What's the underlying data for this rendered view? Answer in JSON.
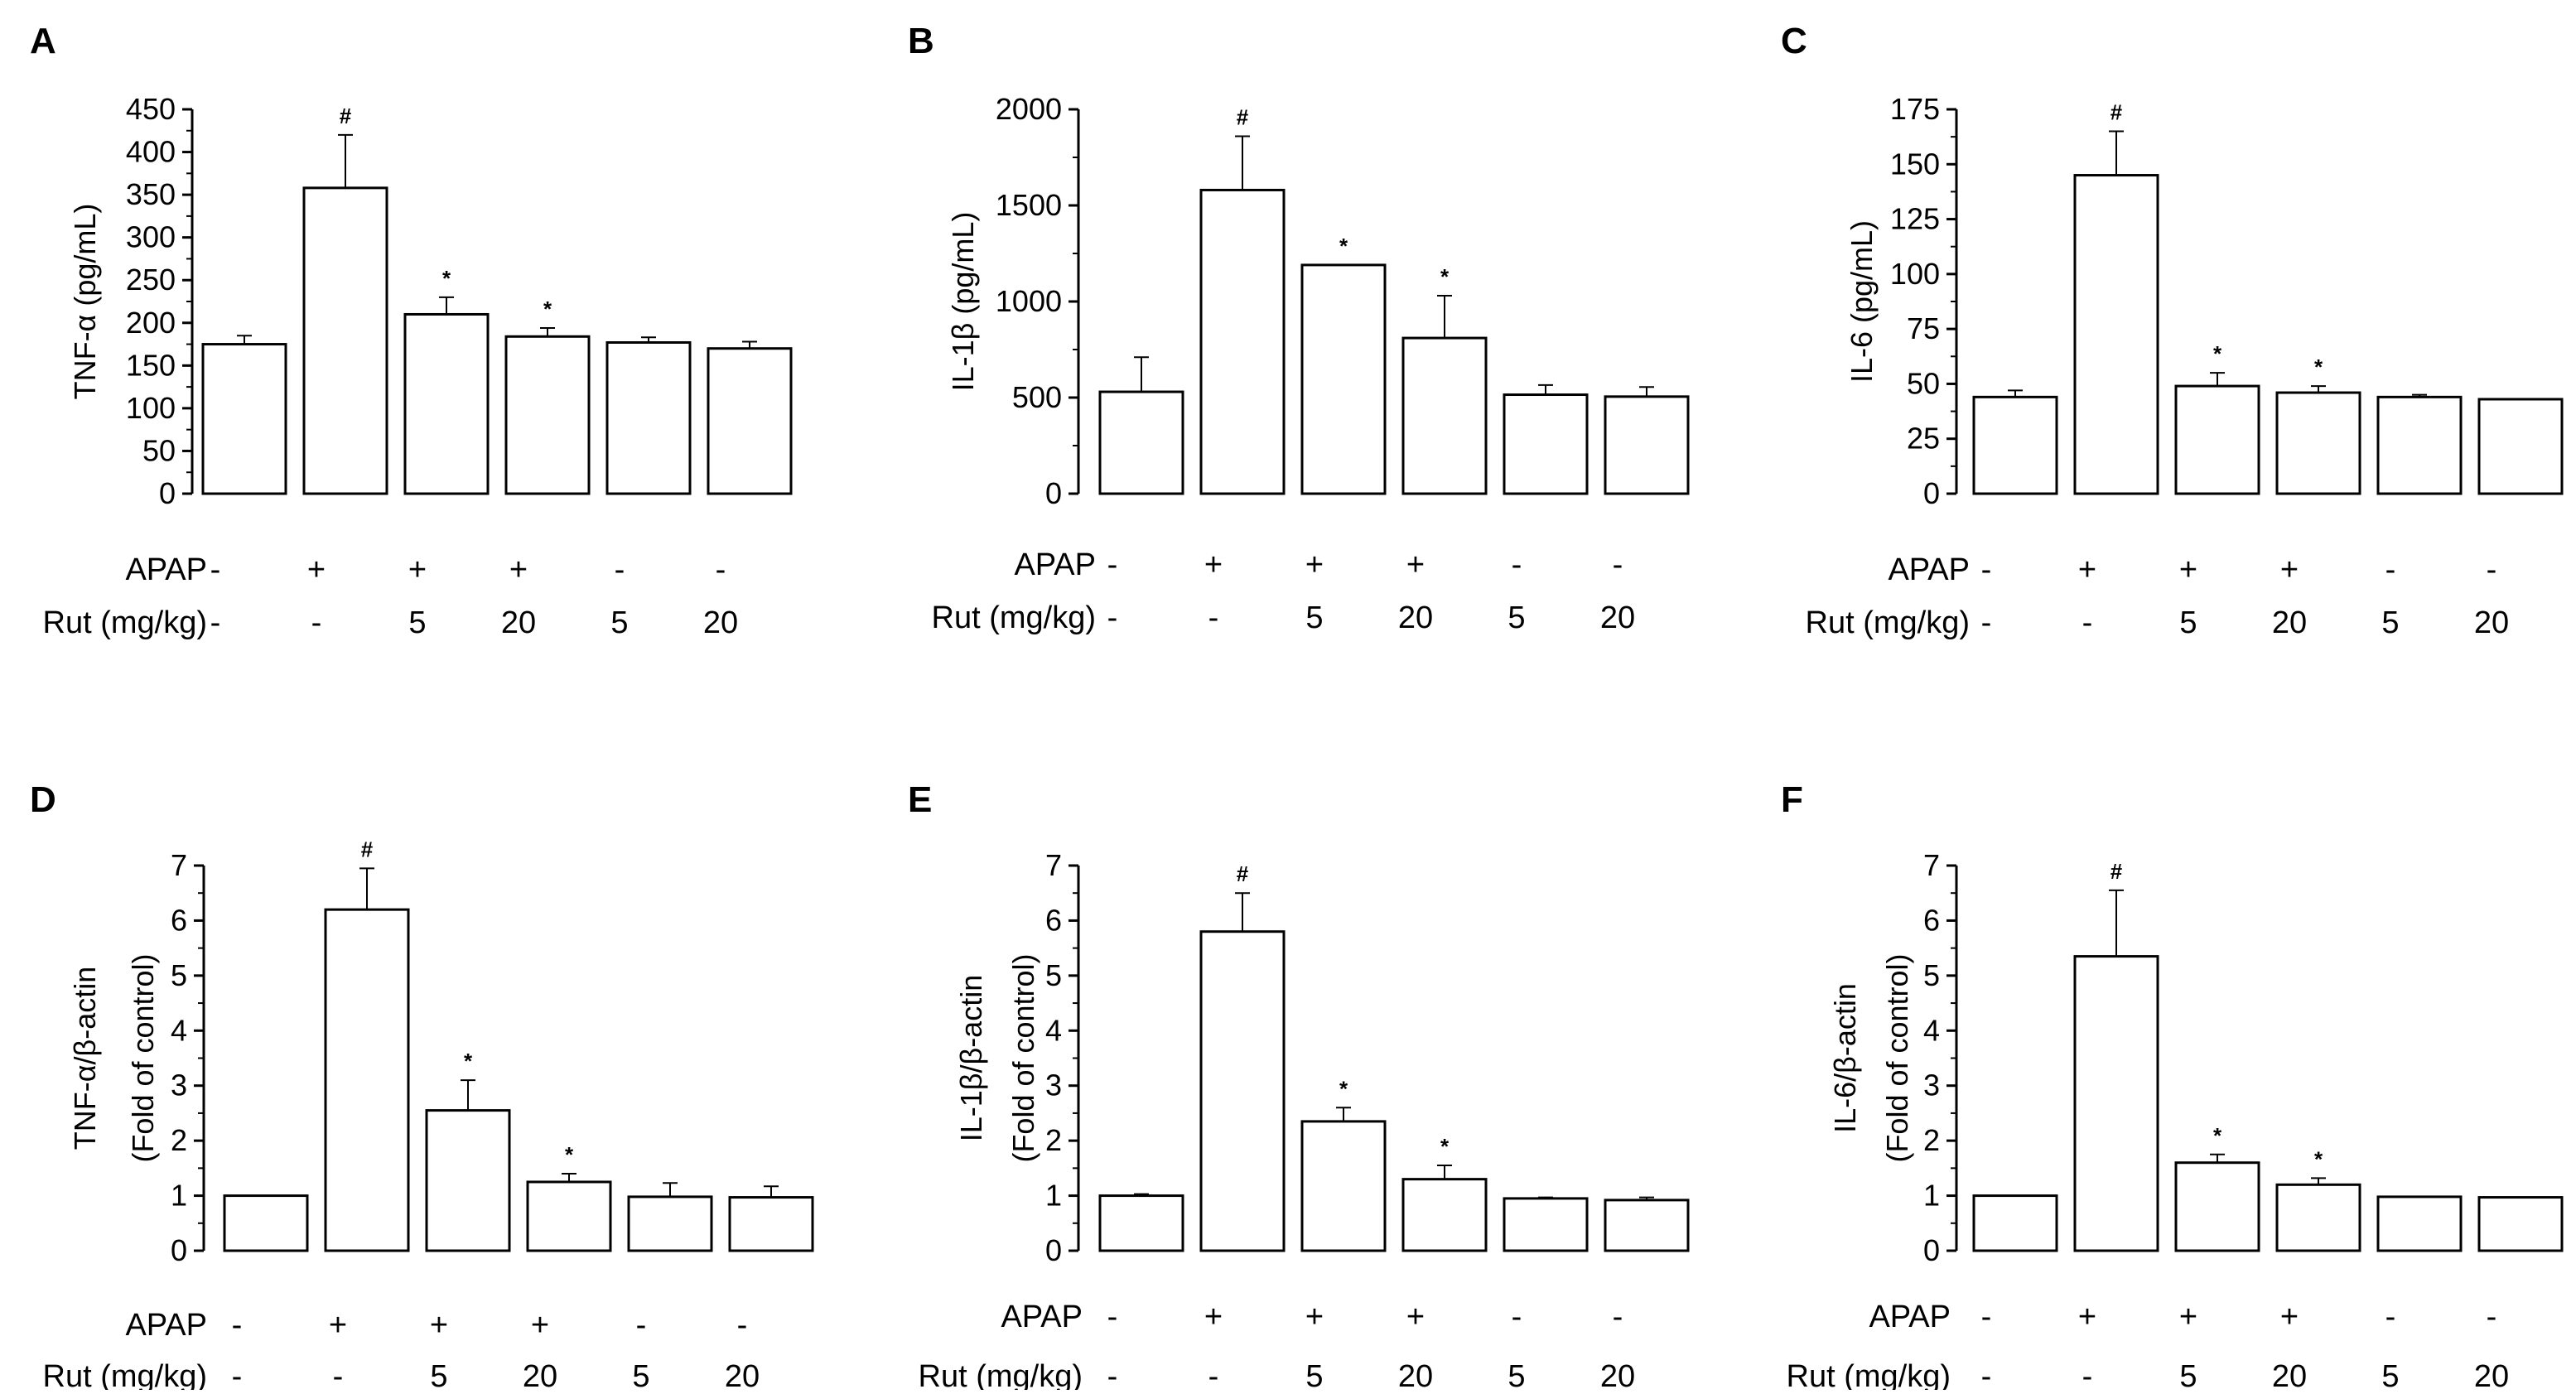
{
  "figure": {
    "row_labels": {
      "apap": "APAP",
      "rut": "Rut (mg/kg)"
    },
    "apap_conditions": [
      "-",
      "+",
      "+",
      "+",
      "-",
      "-"
    ],
    "rut_conditions": [
      "-",
      "-",
      "5",
      "20",
      "5",
      "20"
    ],
    "bar_fill": "#ffffff",
    "line_color": "#000000"
  },
  "chart_data": [
    {
      "panel": "A",
      "type": "bar",
      "ylabel": "TNF-α (pg/mL)",
      "ylim": [
        0,
        450
      ],
      "yticks": [
        0,
        50,
        100,
        150,
        200,
        250,
        300,
        350,
        400,
        450
      ],
      "values": [
        175,
        358,
        210,
        184,
        177,
        170
      ],
      "errors": [
        10,
        62,
        20,
        10,
        6,
        8
      ],
      "sig": [
        "",
        "#",
        "*",
        "*",
        "",
        ""
      ]
    },
    {
      "panel": "B",
      "type": "bar",
      "ylabel": "IL-1β (pg/mL)",
      "ylim": [
        0,
        2000
      ],
      "yticks": [
        0,
        500,
        1000,
        1500,
        2000
      ],
      "values": [
        530,
        1580,
        1190,
        810,
        515,
        505
      ],
      "errors": [
        180,
        280,
        0,
        220,
        50,
        50
      ],
      "sig": [
        "",
        "#",
        "*",
        "*",
        "",
        ""
      ]
    },
    {
      "panel": "C",
      "type": "bar",
      "ylabel": "IL-6 (pg/mL)",
      "ylim": [
        0,
        175
      ],
      "yticks": [
        0,
        25,
        50,
        75,
        100,
        125,
        150,
        175
      ],
      "values": [
        44,
        145,
        49,
        46,
        44,
        43
      ],
      "errors": [
        3,
        20,
        6,
        3,
        1,
        0
      ],
      "sig": [
        "",
        "#",
        "*",
        "*",
        "",
        ""
      ]
    },
    {
      "panel": "D",
      "type": "bar",
      "ylabel": "TNF-α/β-actin",
      "ylabel2": "(Fold of control)",
      "ylim": [
        0,
        7
      ],
      "yticks": [
        0,
        1,
        2,
        3,
        4,
        5,
        6,
        7
      ],
      "values": [
        1.0,
        6.2,
        2.55,
        1.25,
        0.98,
        0.97
      ],
      "errors": [
        0,
        0.75,
        0.55,
        0.15,
        0.25,
        0.2
      ],
      "sig": [
        "",
        "#",
        "*",
        "*",
        "",
        ""
      ]
    },
    {
      "panel": "E",
      "type": "bar",
      "ylabel": "IL-1β/β-actin",
      "ylabel2": "(Fold of control)",
      "ylim": [
        0,
        7
      ],
      "yticks": [
        0,
        1,
        2,
        3,
        4,
        5,
        6,
        7
      ],
      "values": [
        1.0,
        5.8,
        2.35,
        1.3,
        0.95,
        0.92
      ],
      "errors": [
        0.03,
        0.7,
        0.25,
        0.25,
        0.02,
        0.05
      ],
      "sig": [
        "",
        "#",
        "*",
        "*",
        "",
        ""
      ]
    },
    {
      "panel": "F",
      "type": "bar",
      "ylabel": "IL-6/β-actin",
      "ylabel2": "(Fold of control)",
      "ylim": [
        0,
        7
      ],
      "yticks": [
        0,
        1,
        2,
        3,
        4,
        5,
        6,
        7
      ],
      "values": [
        1.0,
        5.35,
        1.6,
        1.2,
        0.98,
        0.97
      ],
      "errors": [
        0,
        1.2,
        0.15,
        0.12,
        0,
        0
      ],
      "sig": [
        "",
        "#",
        "*",
        "*",
        "",
        ""
      ]
    }
  ]
}
